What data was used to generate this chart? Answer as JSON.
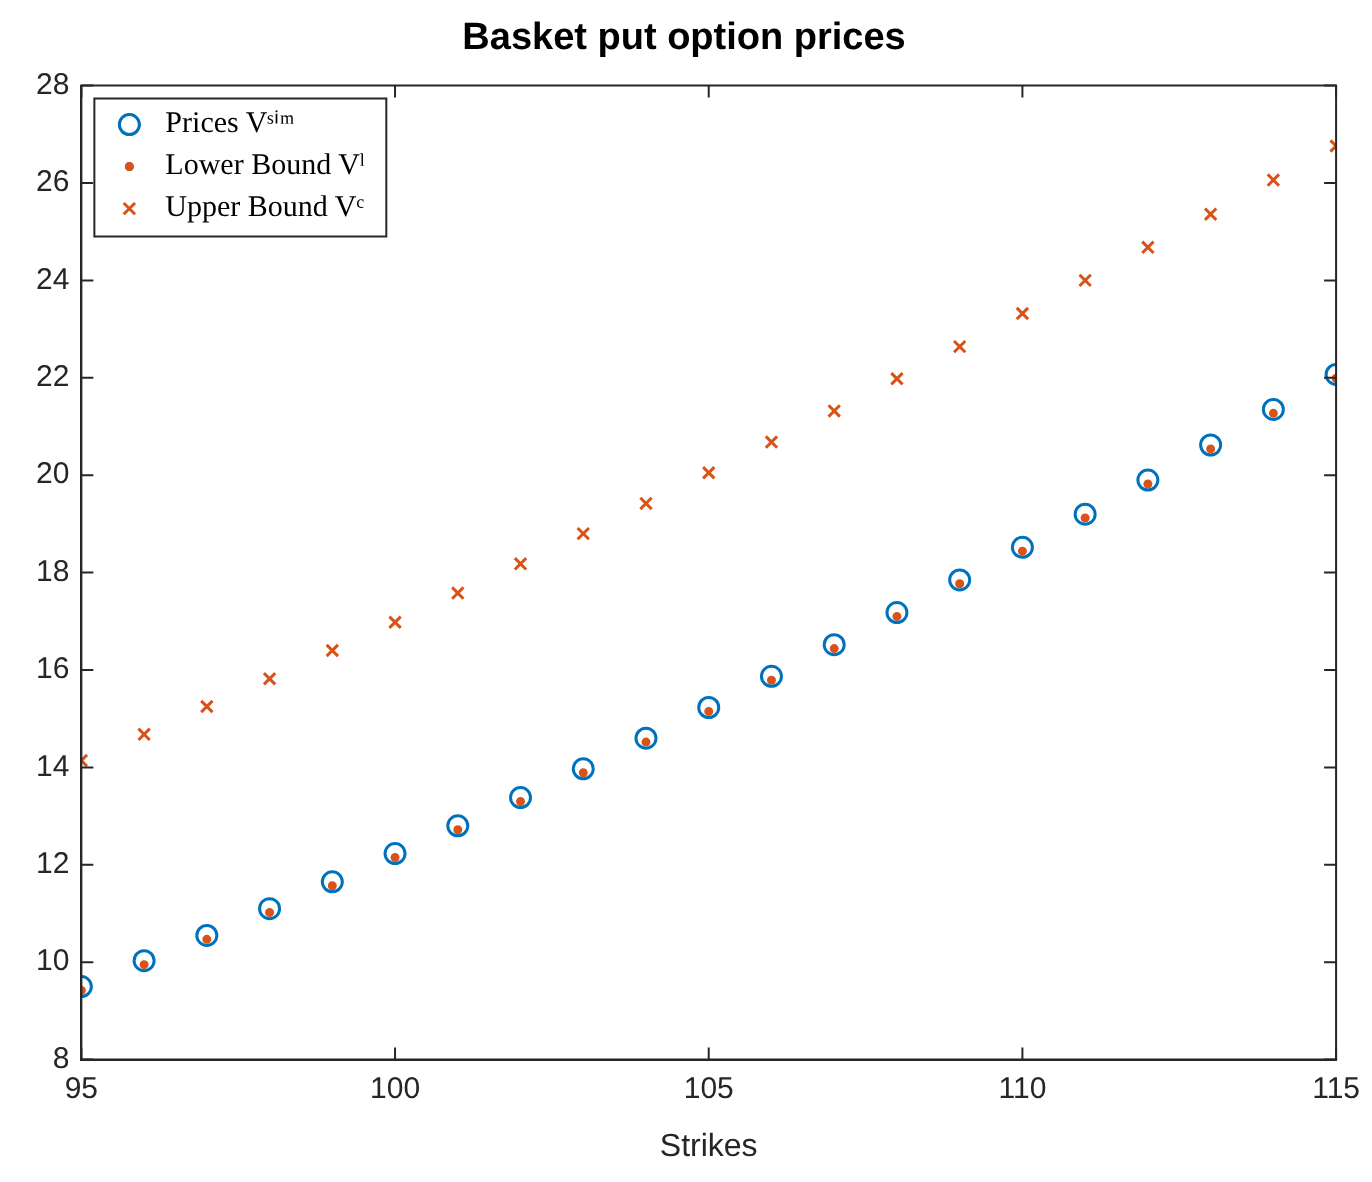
{
  "chart_data": {
    "type": "scatter",
    "title": "Basket put option prices",
    "xlabel": "Strikes",
    "x": [
      95,
      96,
      97,
      98,
      99,
      100,
      101,
      102,
      103,
      104,
      105,
      106,
      107,
      108,
      109,
      110,
      111,
      112,
      113,
      114,
      115
    ],
    "series": [
      {
        "name": "Prices Vˢⁱᵐ",
        "color": "#0072bd",
        "marker": "circle",
        "values": [
          9.5,
          10.03,
          10.55,
          11.1,
          11.65,
          12.23,
          12.8,
          13.38,
          13.97,
          14.6,
          15.23,
          15.87,
          16.52,
          17.18,
          17.85,
          18.52,
          19.2,
          19.9,
          20.62,
          21.35,
          22.07
        ]
      },
      {
        "name": "Lower Bound Vˡ",
        "color": "#d95319",
        "marker": "dot",
        "values": [
          9.42,
          9.95,
          10.47,
          11.02,
          11.57,
          12.15,
          12.72,
          13.3,
          13.89,
          14.52,
          15.15,
          15.79,
          16.44,
          17.1,
          17.77,
          18.44,
          19.12,
          19.82,
          20.54,
          21.27,
          21.99
        ]
      },
      {
        "name": "Upper Bound Vᶜ",
        "color": "#d95319",
        "marker": "cross",
        "values": [
          14.14,
          14.68,
          15.25,
          15.82,
          16.4,
          16.98,
          17.58,
          18.18,
          18.8,
          19.42,
          20.05,
          20.68,
          21.32,
          21.98,
          22.64,
          23.32,
          24.0,
          24.68,
          25.36,
          26.06,
          26.76
        ]
      }
    ],
    "xlim": [
      95,
      115
    ],
    "xticks": [
      95,
      100,
      105,
      110,
      115
    ],
    "ylim": [
      8,
      28
    ],
    "yticks": [
      8,
      10,
      12,
      14,
      16,
      18,
      20,
      22,
      24,
      26,
      28
    ],
    "grid": false,
    "legend": "top left"
  }
}
